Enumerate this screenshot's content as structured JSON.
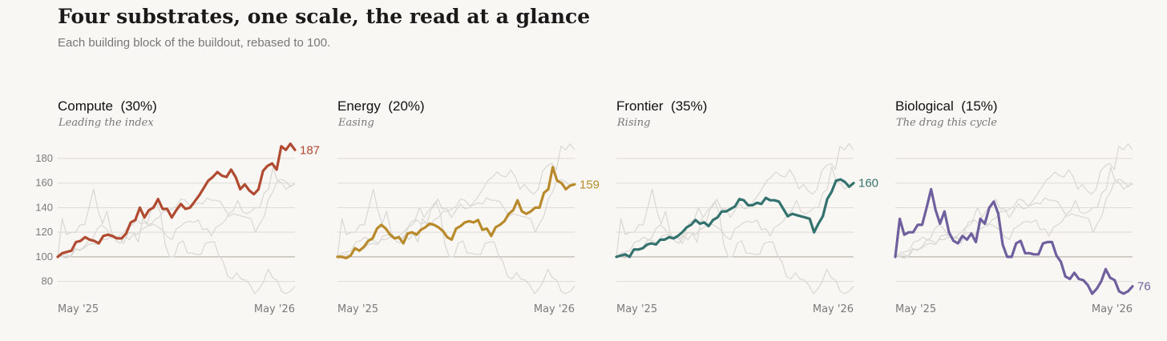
{
  "title": "Four substrates, one scale, the read at a glance",
  "subtitle": "Each building block of the buildout, rebased to 100.",
  "colors": {
    "background": "#f9f7f3",
    "grid": "#dedbd5",
    "baseline": "#b9b6b0",
    "ghost": "#d9d7d3"
  },
  "chart_data": [
    {
      "type": "line",
      "title": "Compute",
      "weight": "(30%)",
      "note": "Leading the index",
      "color": "#b04a30",
      "end_label": "187",
      "x_ticks": [
        "May '25",
        "May '26"
      ],
      "y_ticks": [
        80,
        100,
        120,
        140,
        160,
        180
      ],
      "ylim": [
        68,
        195
      ],
      "grid": true,
      "values": [
        100,
        103,
        104,
        105,
        112,
        113,
        116,
        114,
        113,
        111,
        117,
        118,
        117,
        115,
        115,
        119,
        128,
        130,
        140,
        132,
        138,
        140,
        147,
        139,
        139,
        132,
        138,
        143,
        139,
        140,
        145,
        150,
        156,
        162,
        165,
        169,
        166,
        165,
        171,
        165,
        155,
        159,
        154,
        151,
        155,
        170,
        174,
        176,
        171,
        190,
        187,
        192,
        187
      ]
    },
    {
      "type": "line",
      "title": "Energy",
      "weight": "(20%)",
      "note": "Easing",
      "color": "#b98a2b",
      "end_label": "159",
      "x_ticks": [
        "May '25",
        "May '26"
      ],
      "y_ticks": [
        80,
        100,
        120,
        140,
        160,
        180
      ],
      "ylim": [
        68,
        195
      ],
      "grid": true,
      "values": [
        100,
        100,
        99,
        101,
        107,
        105,
        108,
        113,
        115,
        123,
        126,
        123,
        118,
        115,
        116,
        111,
        119,
        120,
        118,
        122,
        124,
        127,
        126,
        124,
        121,
        116,
        114,
        123,
        125,
        128,
        129,
        128,
        130,
        122,
        123,
        117,
        124,
        126,
        129,
        135,
        138,
        146,
        137,
        135,
        137,
        140,
        140,
        152,
        155,
        173,
        162,
        160,
        155,
        158,
        159
      ]
    },
    {
      "type": "line",
      "title": "Frontier",
      "weight": "(35%)",
      "note": "Rising",
      "color": "#34726f",
      "end_label": "160",
      "x_ticks": [
        "May '25",
        "May '26"
      ],
      "y_ticks": [
        80,
        100,
        120,
        140,
        160,
        180
      ],
      "ylim": [
        68,
        195
      ],
      "grid": true,
      "values": [
        100,
        101,
        102,
        100,
        106,
        106,
        107,
        110,
        111,
        110,
        114,
        114,
        116,
        115,
        117,
        120,
        124,
        126,
        130,
        127,
        128,
        125,
        130,
        132,
        137,
        137,
        139,
        141,
        147,
        146,
        142,
        142,
        144,
        143,
        148,
        146,
        146,
        145,
        139,
        133,
        135,
        134,
        133,
        132,
        131,
        120,
        127,
        133,
        147,
        153,
        162,
        163,
        161,
        157,
        160
      ]
    },
    {
      "type": "line",
      "title": "Biological",
      "weight": "(15%)",
      "note": "The drag this cycle",
      "color": "#6f5f9e",
      "end_label": "76",
      "x_ticks": [
        "May '25",
        "May '26"
      ],
      "y_ticks": [
        80,
        100,
        120,
        140,
        160,
        180
      ],
      "ylim": [
        68,
        195
      ],
      "grid": true,
      "values": [
        100,
        131,
        118,
        120,
        120,
        126,
        126,
        140,
        155,
        138,
        127,
        137,
        120,
        113,
        111,
        117,
        114,
        119,
        112,
        131,
        127,
        140,
        145,
        135,
        110,
        100,
        100,
        111,
        113,
        103,
        103,
        102,
        102,
        111,
        112,
        112,
        101,
        96,
        84,
        82,
        87,
        82,
        81,
        77,
        70,
        74,
        80,
        90,
        83,
        81,
        72,
        70,
        72,
        76
      ]
    }
  ]
}
